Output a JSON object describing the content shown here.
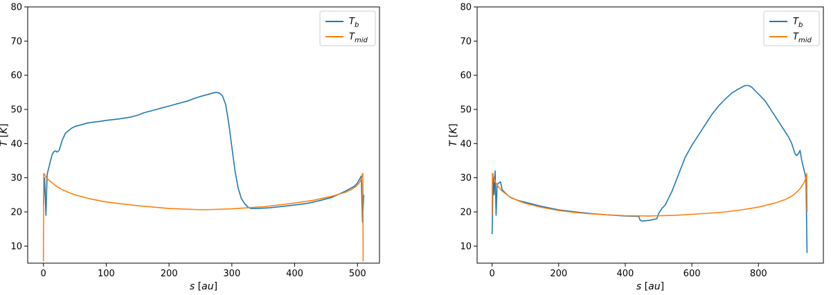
{
  "chart_data": [
    {
      "type": "line",
      "xlabel": "s [au]",
      "ylabel": "T [K]",
      "xlim": [
        -25,
        535
      ],
      "ylim": [
        5,
        80
      ],
      "xticks": [
        0,
        100,
        200,
        300,
        400,
        500
      ],
      "yticks": [
        10,
        20,
        30,
        40,
        50,
        60,
        70,
        80
      ],
      "legend": "top-right",
      "grid": false,
      "series": [
        {
          "name": "T_b",
          "color": "#1f77b4",
          "x": [
            0,
            2,
            4,
            6,
            8,
            10,
            12,
            14,
            16,
            18,
            20,
            22,
            25,
            30,
            35,
            40,
            45,
            50,
            60,
            70,
            80,
            90,
            100,
            110,
            120,
            130,
            140,
            150,
            160,
            170,
            180,
            190,
            200,
            210,
            220,
            230,
            240,
            250,
            260,
            270,
            275,
            280,
            285,
            290,
            295,
            300,
            305,
            310,
            315,
            320,
            325,
            330,
            340,
            360,
            380,
            400,
            420,
            440,
            460,
            480,
            495,
            500,
            503,
            506,
            508,
            510
          ],
          "y": [
            22,
            30,
            19,
            31,
            32.5,
            34,
            35.5,
            36.8,
            37.5,
            37.8,
            37.8,
            37.5,
            38,
            41,
            43,
            43.8,
            44.5,
            45,
            45.5,
            46,
            46.3,
            46.5,
            46.8,
            47,
            47.2,
            47.5,
            47.8,
            48.3,
            49,
            49.5,
            50,
            50.5,
            51,
            51.5,
            52,
            52.5,
            53.2,
            53.8,
            54.3,
            54.8,
            55,
            54.8,
            54,
            51.5,
            46,
            39,
            32,
            27,
            24,
            22.5,
            21.5,
            21,
            21,
            21.2,
            21.6,
            22,
            22.5,
            23.3,
            24.3,
            26,
            27.5,
            28.5,
            29.5,
            30.5,
            17,
            25
          ]
        },
        {
          "name": "T_mid",
          "color": "#ff7f0e",
          "x": [
            0,
            0.5,
            1,
            3,
            6,
            10,
            20,
            30,
            40,
            50,
            75,
            100,
            150,
            200,
            254,
            300,
            350,
            400,
            430,
            460,
            480,
            490,
            498,
            502,
            504,
            506,
            507,
            508,
            508.5,
            509
          ],
          "y": [
            5.5,
            31.2,
            31.2,
            30.5,
            29.8,
            29.1,
            27.6,
            26.5,
            25.7,
            25,
            23.8,
            22.9,
            21.8,
            21,
            20.6,
            20.9,
            21.5,
            22.6,
            23.4,
            24.6,
            25.7,
            26.5,
            27.5,
            28.3,
            28.9,
            29.7,
            30.3,
            31.2,
            31.2,
            5.5
          ]
        }
      ]
    },
    {
      "type": "line",
      "xlabel": "s [au]",
      "ylabel": "T [K]",
      "xlim": [
        -45,
        995
      ],
      "ylim": [
        5,
        80
      ],
      "xticks": [
        0,
        200,
        400,
        600,
        800
      ],
      "yticks": [
        10,
        20,
        30,
        40,
        50,
        60,
        70,
        80
      ],
      "legend": "top-right",
      "grid": false,
      "series": [
        {
          "name": "T_b",
          "color": "#1f77b4",
          "x": [
            0,
            3,
            6,
            9,
            12,
            15,
            20,
            25,
            30,
            40,
            50,
            60,
            80,
            100,
            150,
            200,
            250,
            300,
            350,
            400,
            440,
            445,
            450,
            470,
            495,
            500,
            510,
            520,
            530,
            540,
            550,
            560,
            570,
            580,
            600,
            620,
            640,
            660,
            680,
            700,
            720,
            740,
            750,
            760,
            770,
            780,
            790,
            800,
            810,
            820,
            830,
            840,
            850,
            860,
            870,
            880,
            890,
            900,
            905,
            910,
            915,
            920,
            925,
            930,
            935,
            940,
            943,
            946
          ],
          "y": [
            13.5,
            30,
            25,
            32,
            19,
            28,
            28.5,
            28.8,
            26.5,
            25.5,
            24.6,
            24,
            23.3,
            22.8,
            21.6,
            20.6,
            20,
            19.5,
            19.1,
            18.8,
            18.7,
            17.5,
            17.3,
            17.5,
            18,
            19.5,
            21,
            22,
            24,
            26,
            28.5,
            31,
            33.5,
            36,
            39.5,
            42.5,
            45.5,
            48.5,
            51,
            53,
            54.8,
            56,
            56.5,
            57,
            57,
            56.5,
            55.5,
            54.5,
            53.5,
            52.5,
            51,
            49.5,
            48,
            46.5,
            45,
            43.5,
            42,
            40,
            38.5,
            37,
            36.5,
            37,
            38,
            35,
            33,
            31,
            29,
            8
          ]
        },
        {
          "name": "T_mid",
          "color": "#ff7f0e",
          "x": [
            0,
            1,
            2,
            5,
            10,
            20,
            30,
            50,
            75,
            100,
            150,
            200,
            250,
            300,
            350,
            400,
            470,
            550,
            600,
            650,
            700,
            750,
            800,
            850,
            880,
            900,
            915,
            925,
            935,
            940,
            943,
            945,
            946
          ],
          "y": [
            19,
            31.3,
            31.3,
            30,
            28.7,
            27.2,
            26.1,
            24.6,
            23.4,
            22.5,
            21.3,
            20.4,
            19.8,
            19.4,
            19.1,
            18.9,
            18.8,
            19,
            19.3,
            19.6,
            20,
            20.6,
            21.4,
            22.6,
            23.6,
            24.6,
            25.8,
            26.8,
            28.3,
            29.3,
            30.2,
            31.2,
            20
          ]
        }
      ]
    }
  ]
}
